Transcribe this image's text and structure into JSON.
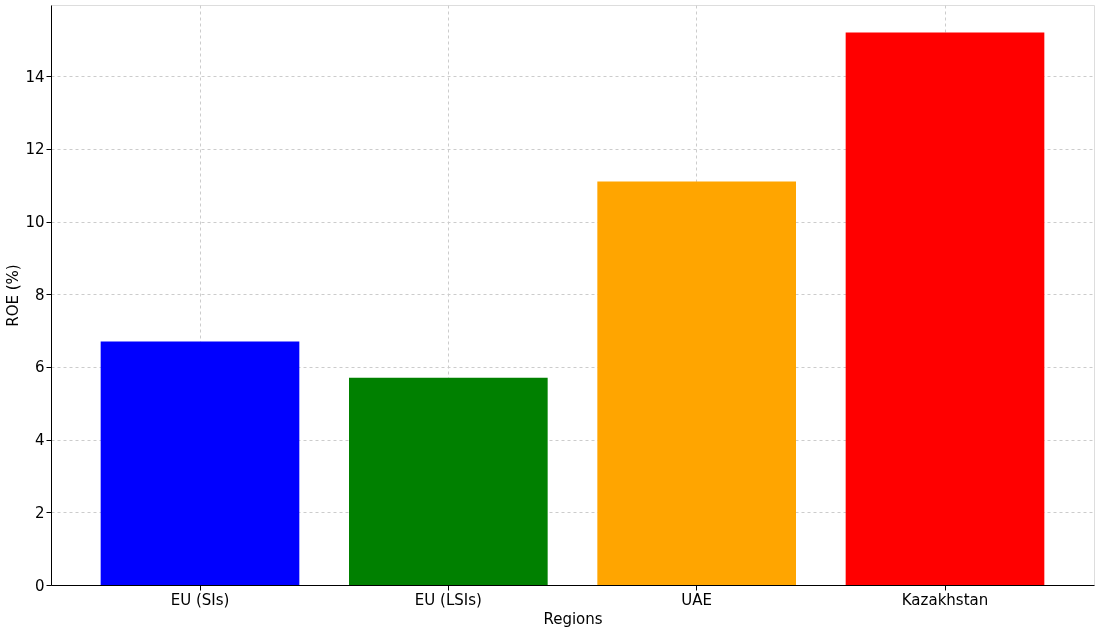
{
  "chart_data": {
    "type": "bar",
    "xlabel": "Regions",
    "ylabel": "ROE (%)",
    "categories": [
      "EU (SIs)",
      "EU (LSIs)",
      "UAE",
      "Kazakhstan"
    ],
    "values": [
      6.7,
      5.7,
      11.1,
      15.2
    ],
    "colors": [
      "#0000ff",
      "#008000",
      "#ffa500",
      "#ff0000"
    ],
    "ylim": [
      0,
      15.96
    ],
    "yticks": [
      0,
      2,
      4,
      6,
      8,
      10,
      12,
      14
    ],
    "grid": true
  }
}
